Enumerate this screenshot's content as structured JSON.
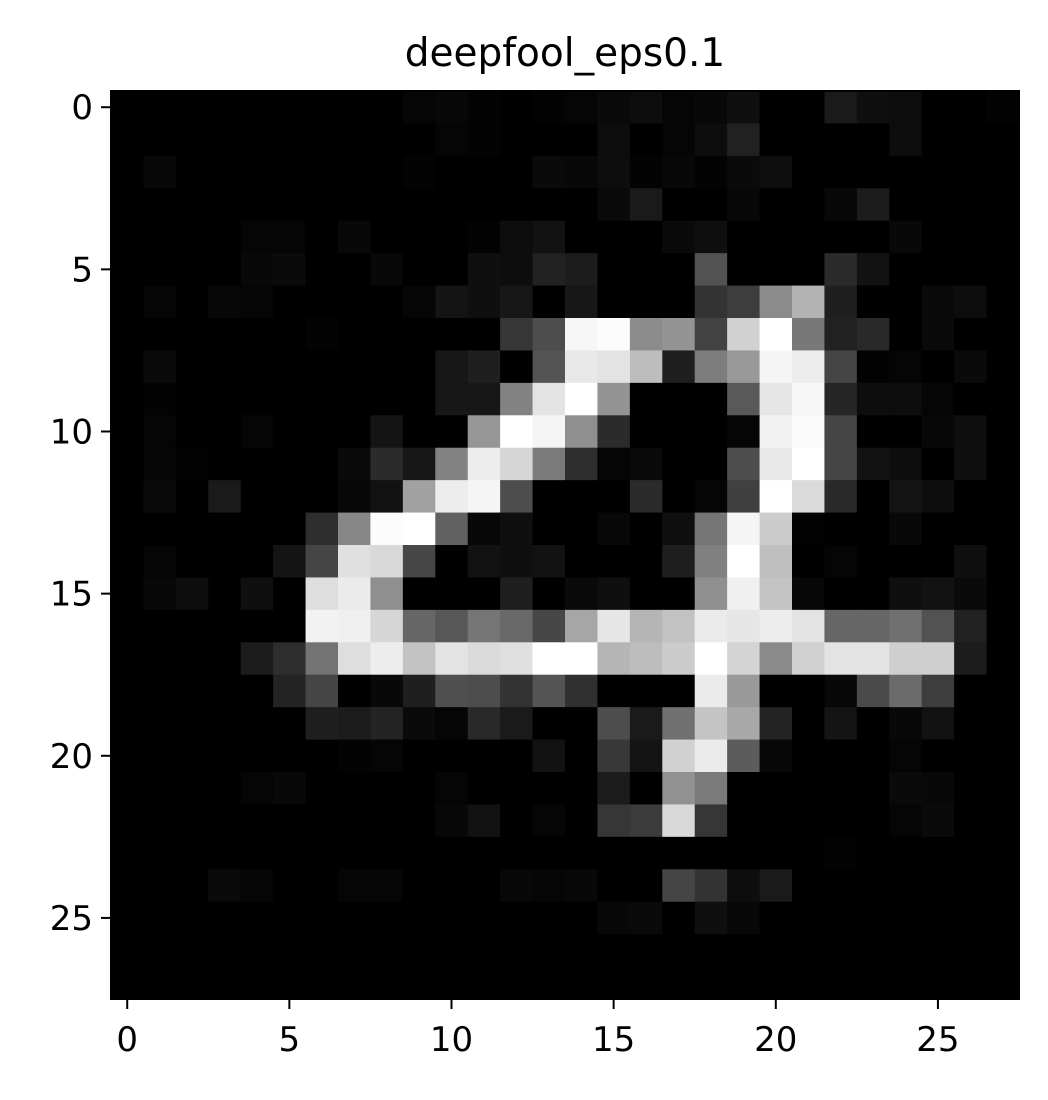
{
  "chart_data": {
    "type": "heatmap",
    "title": "deepfool_eps0.1",
    "colormap": "gray",
    "grid": false,
    "value_range": [
      0,
      1
    ],
    "xlim": [
      -0.5,
      27.5
    ],
    "ylim": [
      27.5,
      -0.5
    ],
    "xticks": [
      0,
      5,
      10,
      15,
      20,
      25
    ],
    "yticks": [
      0,
      5,
      10,
      15,
      20,
      25
    ],
    "xtick_labels": [
      "0",
      "5",
      "10",
      "15",
      "20",
      "25"
    ],
    "ytick_labels": [
      "0",
      "5",
      "10",
      "15",
      "20",
      "25"
    ],
    "rows": 28,
    "cols": 28,
    "values": [
      [
        0,
        0,
        0,
        0,
        0,
        0,
        0,
        0,
        0,
        0.02,
        0.03,
        0.01,
        0,
        0.01,
        0.02,
        0.04,
        0.05,
        0.02,
        0.03,
        0.06,
        0,
        0,
        0.1,
        0.06,
        0.05,
        0,
        0,
        0.01
      ],
      [
        0,
        0,
        0,
        0,
        0,
        0,
        0,
        0,
        0,
        0,
        0.02,
        0.01,
        0,
        0,
        0,
        0.05,
        0,
        0.02,
        0.05,
        0.13,
        0,
        0,
        0,
        0,
        0.05,
        0,
        0,
        0
      ],
      [
        0,
        0.03,
        0,
        0,
        0,
        0,
        0,
        0,
        0,
        0.01,
        0,
        0,
        0,
        0.04,
        0.03,
        0.05,
        0.01,
        0.03,
        0.01,
        0.04,
        0.06,
        0,
        0,
        0,
        0,
        0,
        0,
        0
      ],
      [
        0,
        0,
        0,
        0,
        0,
        0,
        0,
        0,
        0,
        0,
        0,
        0,
        0,
        0,
        0,
        0.04,
        0.1,
        0,
        0,
        0.03,
        0,
        0,
        0.03,
        0.11,
        0,
        0,
        0,
        0
      ],
      [
        0,
        0,
        0,
        0,
        0.02,
        0.02,
        0,
        0.03,
        0,
        0,
        0,
        0.01,
        0.05,
        0.07,
        0,
        0,
        0,
        0.04,
        0.06,
        0,
        0,
        0,
        0,
        0,
        0.03,
        0,
        0,
        0
      ],
      [
        0,
        0,
        0,
        0,
        0.03,
        0.04,
        0,
        0,
        0.03,
        0,
        0,
        0.06,
        0.05,
        0.13,
        0.11,
        0,
        0,
        0,
        0.32,
        0,
        0,
        0,
        0.17,
        0.07,
        0,
        0,
        0,
        0
      ],
      [
        0,
        0.02,
        0,
        0.03,
        0.02,
        0,
        0,
        0,
        0,
        0.02,
        0.08,
        0.06,
        0.09,
        0,
        0.09,
        0,
        0,
        0,
        0.2,
        0.24,
        0.55,
        0.7,
        0.12,
        0,
        0,
        0.04,
        0.05,
        0
      ],
      [
        0,
        0,
        0,
        0,
        0,
        0,
        0.01,
        0,
        0,
        0,
        0,
        0,
        0.21,
        0.3,
        0.97,
        0.99,
        0.55,
        0.58,
        0.26,
        0.82,
        1,
        0.47,
        0.13,
        0.16,
        0,
        0.04,
        0,
        0
      ],
      [
        0,
        0.04,
        0,
        0,
        0,
        0,
        0,
        0,
        0,
        0,
        0.09,
        0.12,
        0,
        0.33,
        0.91,
        0.89,
        0.74,
        0.12,
        0.49,
        0.6,
        0.96,
        0.93,
        0.27,
        0.01,
        0.02,
        0,
        0.04,
        0
      ],
      [
        0,
        0.01,
        0,
        0,
        0,
        0,
        0,
        0,
        0,
        0,
        0.09,
        0.09,
        0.51,
        0.89,
        1,
        0.58,
        0,
        0,
        0,
        0.35,
        0.9,
        0.97,
        0.15,
        0.05,
        0.05,
        0.02,
        0,
        0
      ],
      [
        0,
        0.02,
        0,
        0,
        0.02,
        0,
        0,
        0,
        0.08,
        0,
        0,
        0.59,
        1,
        0.96,
        0.56,
        0.17,
        0,
        0,
        0,
        0.02,
        0.95,
        0.98,
        0.27,
        0,
        0,
        0.03,
        0.06,
        0
      ],
      [
        0,
        0.02,
        0.01,
        0,
        0,
        0,
        0,
        0.04,
        0.17,
        0.09,
        0.51,
        0.93,
        0.84,
        0.48,
        0.18,
        0.02,
        0.04,
        0,
        0,
        0.3,
        0.91,
        1,
        0.27,
        0.07,
        0.05,
        0,
        0.06,
        0
      ],
      [
        0,
        0.04,
        0,
        0.1,
        0,
        0,
        0,
        0.03,
        0.07,
        0.63,
        0.93,
        0.96,
        0.3,
        0,
        0,
        0,
        0.17,
        0,
        0.02,
        0.25,
        1,
        0.86,
        0.16,
        0,
        0.08,
        0.05,
        0,
        0
      ],
      [
        0,
        0,
        0,
        0,
        0,
        0,
        0.18,
        0.53,
        0.99,
        1,
        0.38,
        0.03,
        0.06,
        0,
        0,
        0.03,
        0,
        0.06,
        0.46,
        0.96,
        0.8,
        0.01,
        0,
        0,
        0.03,
        0,
        0,
        0
      ],
      [
        0,
        0.02,
        0,
        0,
        0,
        0.08,
        0.27,
        0.88,
        0.85,
        0.28,
        0,
        0.07,
        0.06,
        0.07,
        0,
        0,
        0,
        0.12,
        0.5,
        1,
        0.75,
        0,
        0.02,
        0,
        0,
        0,
        0.06,
        0
      ],
      [
        0,
        0.03,
        0.05,
        0,
        0.06,
        0,
        0.87,
        0.92,
        0.56,
        0,
        0,
        0,
        0.12,
        0,
        0.04,
        0.06,
        0,
        0,
        0.56,
        0.94,
        0.77,
        0.03,
        0,
        0,
        0.06,
        0.07,
        0.04,
        0
      ],
      [
        0,
        0,
        0,
        0,
        0,
        0,
        0.95,
        0.94,
        0.84,
        0.4,
        0.34,
        0.46,
        0.41,
        0.28,
        0.65,
        0.9,
        0.71,
        0.76,
        0.92,
        0.9,
        0.93,
        0.89,
        0.4,
        0.4,
        0.44,
        0.32,
        0.13,
        0
      ],
      [
        0,
        0,
        0,
        0,
        0.11,
        0.18,
        0.45,
        0.87,
        0.93,
        0.76,
        0.89,
        0.86,
        0.88,
        1,
        1,
        0.71,
        0.74,
        0.8,
        1,
        0.83,
        0.54,
        0.82,
        0.89,
        0.89,
        0.81,
        0.81,
        0.11,
        0
      ],
      [
        0,
        0,
        0,
        0,
        0,
        0.14,
        0.27,
        0,
        0.03,
        0.12,
        0.31,
        0.3,
        0.2,
        0.33,
        0.19,
        0,
        0,
        0,
        0.92,
        0.6,
        0,
        0,
        0.03,
        0.29,
        0.42,
        0.24,
        0,
        0
      ],
      [
        0,
        0,
        0,
        0,
        0,
        0,
        0.12,
        0.11,
        0.14,
        0.04,
        0.02,
        0.16,
        0.1,
        0,
        0,
        0.3,
        0.1,
        0.44,
        0.77,
        0.66,
        0.14,
        0,
        0.08,
        0,
        0.03,
        0.07,
        0,
        0
      ],
      [
        0,
        0,
        0,
        0,
        0,
        0,
        0,
        0.01,
        0.02,
        0,
        0,
        0,
        0,
        0.07,
        0,
        0.22,
        0.08,
        0.82,
        0.92,
        0.36,
        0.03,
        0,
        0,
        0,
        0.02,
        0,
        0,
        0
      ],
      [
        0,
        0,
        0,
        0,
        0.02,
        0.03,
        0,
        0,
        0,
        0,
        0.02,
        0,
        0,
        0,
        0,
        0.11,
        0,
        0.57,
        0.48,
        0,
        0,
        0,
        0,
        0,
        0.04,
        0.03,
        0,
        0
      ],
      [
        0,
        0,
        0,
        0,
        0,
        0,
        0,
        0,
        0,
        0,
        0.03,
        0.07,
        0,
        0.02,
        0,
        0.21,
        0.23,
        0.85,
        0.21,
        0,
        0,
        0,
        0,
        0,
        0.02,
        0.04,
        0,
        0
      ],
      [
        0,
        0,
        0,
        0,
        0,
        0,
        0,
        0,
        0,
        0,
        0,
        0,
        0,
        0,
        0,
        0,
        0,
        0,
        0,
        0,
        0,
        0,
        0.01,
        0,
        0,
        0,
        0,
        0
      ],
      [
        0,
        0,
        0,
        0.04,
        0.02,
        0,
        0,
        0.02,
        0.02,
        0,
        0,
        0,
        0.03,
        0.02,
        0.03,
        0,
        0,
        0.27,
        0.2,
        0.05,
        0.1,
        0,
        0,
        0,
        0,
        0,
        0,
        0
      ],
      [
        0,
        0,
        0,
        0,
        0,
        0,
        0,
        0,
        0,
        0,
        0,
        0,
        0,
        0,
        0,
        0.03,
        0.04,
        0,
        0.06,
        0.03,
        0,
        0,
        0,
        0,
        0,
        0,
        0,
        0
      ],
      [
        0,
        0,
        0,
        0,
        0,
        0,
        0,
        0,
        0,
        0,
        0,
        0,
        0,
        0,
        0,
        0,
        0,
        0,
        0,
        0,
        0,
        0,
        0,
        0,
        0,
        0,
        0,
        0
      ],
      [
        0,
        0,
        0,
        0,
        0,
        0,
        0,
        0,
        0,
        0,
        0,
        0,
        0,
        0,
        0,
        0,
        0,
        0,
        0,
        0,
        0,
        0,
        0,
        0,
        0,
        0,
        0,
        0
      ]
    ]
  }
}
